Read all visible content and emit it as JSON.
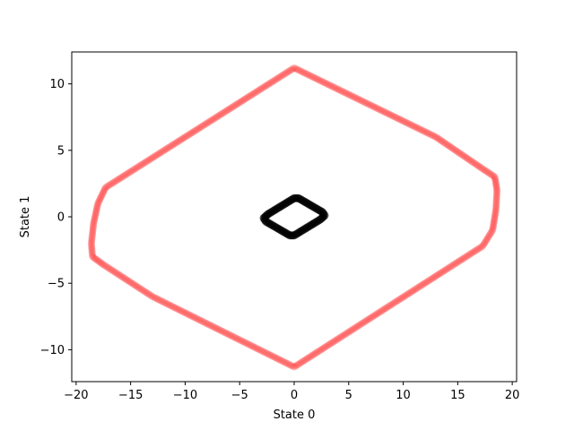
{
  "chart_data": {
    "type": "scatter",
    "xlabel": "State 0",
    "ylabel": "State 1",
    "xlim": [
      -20.4,
      20.4
    ],
    "ylim": [
      -12.4,
      12.4
    ],
    "xticks": [
      -20,
      -15,
      -10,
      -5,
      0,
      5,
      10,
      15,
      20
    ],
    "yticks": [
      -10,
      -5,
      0,
      5,
      10
    ],
    "grid": false,
    "series": [
      {
        "color": "#ff1a1a",
        "x": [
          0,
          13,
          17.3,
          18.4,
          18.6,
          18.5,
          18.2,
          17.3,
          0,
          -13,
          -17.5,
          -18.5,
          -18.6,
          -18.4,
          -18.0,
          -17.3,
          0
        ],
        "y": [
          11.2,
          6.0,
          3.6,
          3.0,
          2.0,
          0.5,
          -1.0,
          -2.2,
          -11.3,
          -6.0,
          -3.6,
          -3.0,
          -2.0,
          -0.5,
          1.0,
          2.2,
          11.2
        ]
      },
      {
        "color": "#000000",
        "x": [
          0.4,
          2.6,
          2.8,
          2.4,
          0.0,
          -0.4,
          -2.6,
          -2.8,
          -2.4,
          0.0,
          0.4
        ],
        "y": [
          1.4,
          0.35,
          0.1,
          -0.2,
          -1.4,
          -1.4,
          -0.35,
          -0.1,
          0.2,
          1.4,
          1.4
        ]
      }
    ]
  }
}
